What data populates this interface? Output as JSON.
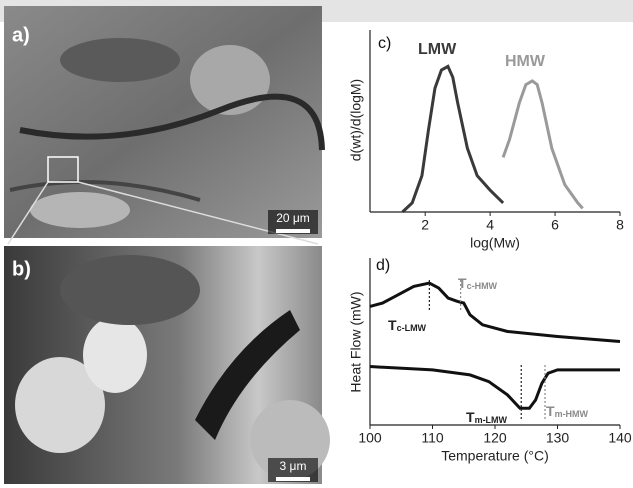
{
  "panels": [
    {
      "label": "a)",
      "scale_bar": "20 μm"
    },
    {
      "label": "b)",
      "scale_bar": "3 μm"
    }
  ],
  "chart_data": [
    {
      "type": "line",
      "panel": "c)",
      "x_label": "log(Mw)",
      "y_label": "d(wt)/d(logM)",
      "xlim": [
        0.3,
        8
      ],
      "xticks": [
        2,
        4,
        6,
        8
      ],
      "ylim": [
        0,
        1
      ],
      "series": [
        {
          "name": "LMW",
          "color": "#3a3a3a",
          "x": [
            1.3,
            1.6,
            1.9,
            2.1,
            2.3,
            2.5,
            2.7,
            2.85,
            3.0,
            3.3,
            3.6,
            4.0,
            4.4
          ],
          "values": [
            0,
            0.05,
            0.2,
            0.45,
            0.68,
            0.78,
            0.8,
            0.74,
            0.6,
            0.35,
            0.2,
            0.12,
            0.05
          ]
        },
        {
          "name": "HMW",
          "color": "#9a9a9a",
          "x": [
            4.4,
            4.6,
            4.9,
            5.1,
            5.3,
            5.45,
            5.6,
            5.9,
            6.3,
            6.7,
            6.85
          ],
          "values": [
            0.3,
            0.4,
            0.6,
            0.7,
            0.72,
            0.7,
            0.6,
            0.35,
            0.15,
            0.05,
            0.02
          ]
        }
      ]
    },
    {
      "type": "line",
      "panel": "d)",
      "x_label": "Temperature (°C)",
      "y_label": "Heat Flow (mW)",
      "xlim": [
        100,
        140
      ],
      "xticks": [
        100,
        110,
        120,
        130,
        140
      ],
      "ylim": [
        0,
        1
      ],
      "series": [
        {
          "color": "#111111",
          "x": [
            100,
            102,
            104,
            107,
            109.5,
            111,
            112.5,
            114,
            115,
            116,
            118,
            122,
            130,
            140
          ],
          "values": [
            0.71,
            0.73,
            0.77,
            0.83,
            0.85,
            0.82,
            0.76,
            0.74,
            0.73,
            0.66,
            0.6,
            0.56,
            0.53,
            0.5
          ]
        },
        {
          "color": "#111111",
          "x": [
            100,
            110,
            116,
            119,
            122,
            124,
            125.5,
            126.5,
            127.5,
            128.5,
            130,
            135,
            140
          ],
          "values": [
            0.35,
            0.33,
            0.3,
            0.26,
            0.18,
            0.1,
            0.1,
            0.15,
            0.25,
            0.31,
            0.33,
            0.33,
            0.33
          ]
        }
      ],
      "annotations": [
        {
          "x": 109.5,
          "text": "T",
          "sub": "c-LMW",
          "color": "#222222"
        },
        {
          "x": 114.5,
          "text": "T",
          "sub": "c-HMW",
          "color": "#8a8a8a"
        },
        {
          "x": 124.2,
          "text": "T",
          "sub": "m-LMW",
          "color": "#222222"
        },
        {
          "x": 128,
          "text": "T",
          "sub": "m-HMW",
          "color": "#8a8a8a"
        }
      ]
    }
  ]
}
